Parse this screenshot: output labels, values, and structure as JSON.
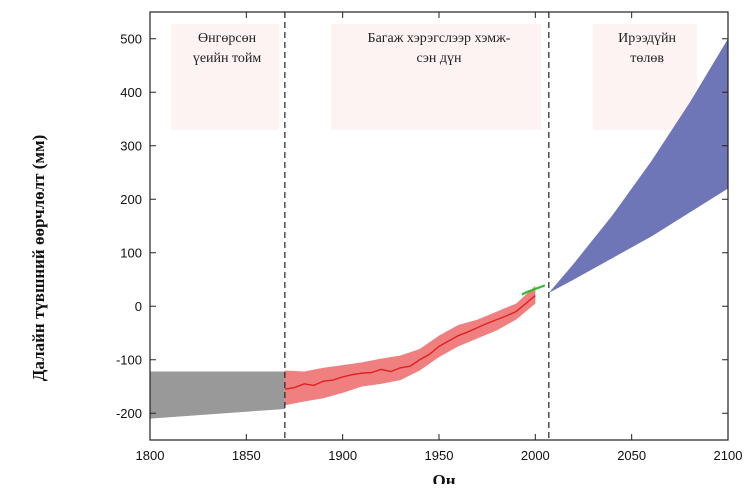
{
  "chart_data": {
    "type": "area",
    "xlabel": "Он",
    "ylabel": "Далайн түвшний өөрчлөлт (мм)",
    "xlim": [
      1800,
      2100
    ],
    "ylim": [
      -250,
      550
    ],
    "x_ticks": [
      "1800",
      "1850",
      "1900",
      "1950",
      "2000",
      "2050",
      "2100"
    ],
    "y_ticks": [
      "500",
      "400",
      "300",
      "200",
      "100",
      "0",
      "-100",
      "-200"
    ],
    "grid": false,
    "dividers": [
      1870,
      2007
    ],
    "periods": [
      {
        "lines": [
          "Өнгөрсөн",
          "үеийн тойм"
        ]
      },
      {
        "lines": [
          "Багаж хэрэгслээр хэмж-",
          "сэн дүн"
        ]
      },
      {
        "lines": [
          "Ирээдүйн",
          "төлөв"
        ]
      }
    ],
    "colors": {
      "past": "#999999",
      "instrumental_band": "#f08080",
      "instrumental_line": "#e0201f",
      "satellite": "#33bb33",
      "projection": "#6f76b8"
    },
    "series": [
      {
        "key": "past_estimate",
        "kind": "band",
        "x": [
          1800,
          1870
        ],
        "lower": [
          -210,
          -192
        ],
        "upper": [
          -122,
          -122
        ]
      },
      {
        "key": "instrumental_range",
        "kind": "band",
        "x": [
          1870,
          1880,
          1890,
          1900,
          1910,
          1920,
          1930,
          1940,
          1950,
          1960,
          1970,
          1980,
          1990,
          2000
        ],
        "lower": [
          -185,
          -178,
          -172,
          -162,
          -150,
          -145,
          -138,
          -120,
          -95,
          -75,
          -60,
          -45,
          -25,
          5
        ],
        "upper": [
          -120,
          -122,
          -115,
          -110,
          -105,
          -98,
          -92,
          -80,
          -55,
          -35,
          -25,
          -10,
          5,
          38
        ]
      },
      {
        "key": "tide_gauge",
        "kind": "line",
        "x": [
          1870,
          1875,
          1880,
          1885,
          1890,
          1895,
          1900,
          1905,
          1910,
          1915,
          1920,
          1925,
          1930,
          1935,
          1940,
          1945,
          1950,
          1955,
          1960,
          1965,
          1970,
          1975,
          1980,
          1985,
          1990,
          1995,
          2000
        ],
        "y": [
          -155,
          -152,
          -145,
          -148,
          -140,
          -138,
          -132,
          -128,
          -125,
          -124,
          -118,
          -122,
          -115,
          -112,
          -100,
          -90,
          -75,
          -65,
          -55,
          -48,
          -40,
          -32,
          -25,
          -18,
          -10,
          5,
          20
        ]
      },
      {
        "key": "satellite_altimetry",
        "kind": "line",
        "x": [
          1993,
          1996,
          1999,
          2002,
          2005
        ],
        "y": [
          22,
          27,
          31,
          35,
          39
        ]
      },
      {
        "key": "projection",
        "kind": "band",
        "x": [
          2007,
          2020,
          2040,
          2060,
          2080,
          2100
        ],
        "lower": [
          25,
          50,
          90,
          130,
          175,
          220
        ],
        "upper": [
          25,
          80,
          170,
          270,
          380,
          500
        ]
      }
    ]
  }
}
